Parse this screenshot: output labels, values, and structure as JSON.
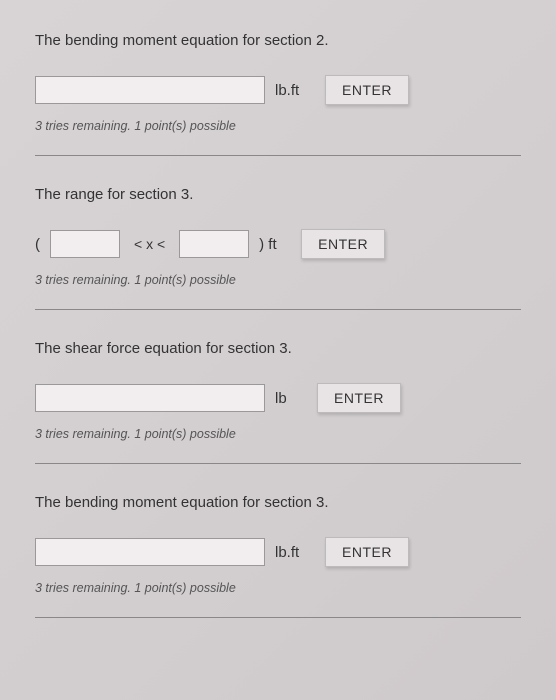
{
  "questions": [
    {
      "prompt": "The bending moment equation for section 2.",
      "unit": "lb.ft",
      "enter": "ENTER",
      "hint": "3 tries remaining. 1 point(s) possible"
    },
    {
      "prompt": "The range for section 3.",
      "open_paren": "(",
      "between": "<  x <",
      "close_paren": ") ft",
      "enter": "ENTER",
      "hint": "3 tries remaining. 1 point(s) possible"
    },
    {
      "prompt": "The shear force equation for section 3.",
      "unit": "lb",
      "enter": "ENTER",
      "hint": "3 tries remaining. 1 point(s) possible"
    },
    {
      "prompt": "The bending moment equation for section 3.",
      "unit": "lb.ft",
      "enter": "ENTER",
      "hint": "3 tries remaining. 1 point(s) possible"
    }
  ]
}
